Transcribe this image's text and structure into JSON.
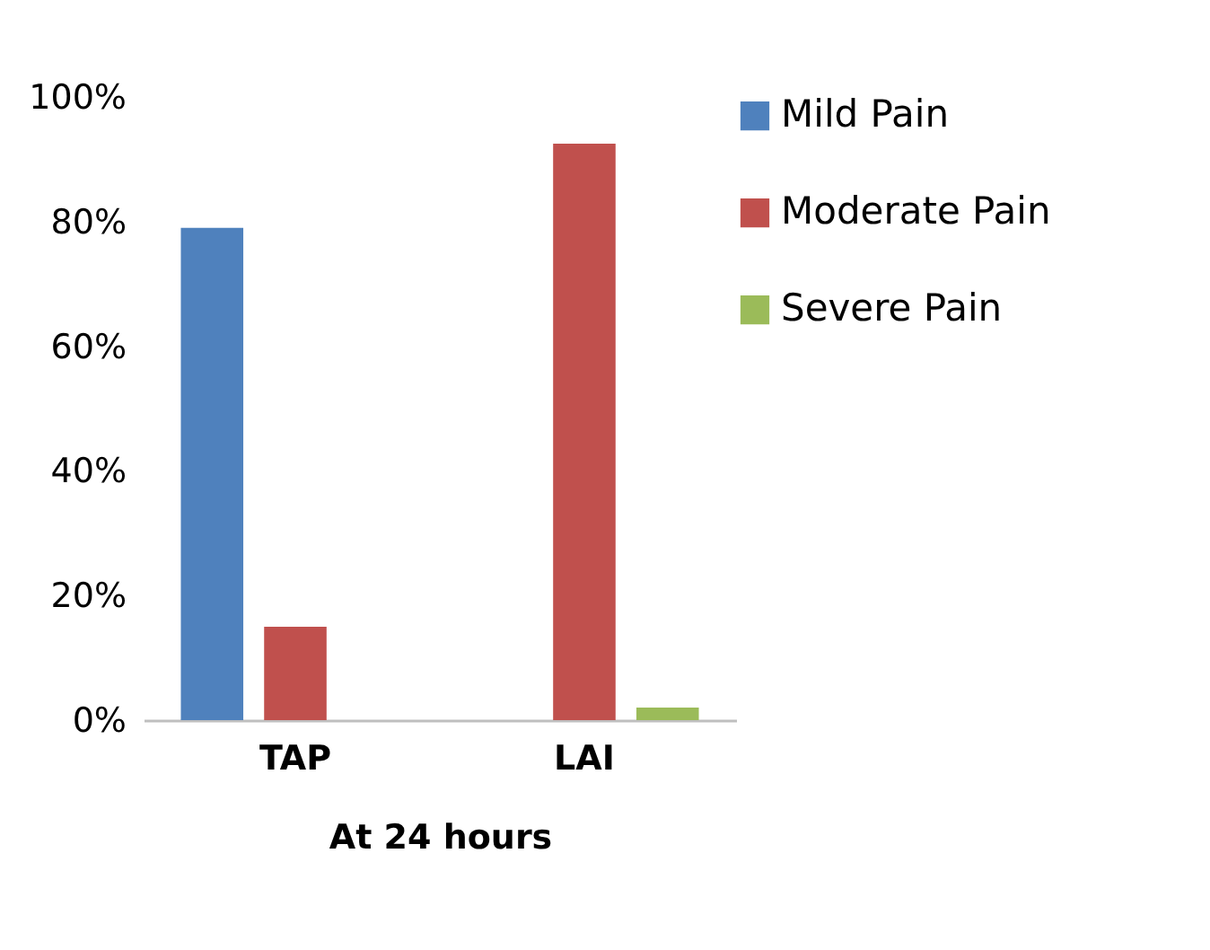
{
  "chart_data": {
    "type": "bar",
    "xlabel": "At 24 hours",
    "categories": [
      "TAP",
      "LAI"
    ],
    "series": [
      {
        "name": "Mild Pain",
        "color": "#4f81bd",
        "values": [
          79,
          0
        ]
      },
      {
        "name": "Moderate Pain",
        "color": "#c0504d",
        "values": [
          15,
          92.5
        ]
      },
      {
        "name": "Severe Pain",
        "color": "#9bbb59",
        "values": [
          0,
          2
        ]
      }
    ],
    "ylim": [
      0,
      100
    ],
    "yticks": [
      {
        "value": 0,
        "label": "0%"
      },
      {
        "value": 20,
        "label": "20%"
      },
      {
        "value": 40,
        "label": "40%"
      },
      {
        "value": 60,
        "label": "60%"
      },
      {
        "value": 80,
        "label": "80%"
      },
      {
        "value": 100,
        "label": "100%"
      }
    ],
    "grid": false,
    "legend": "right"
  }
}
